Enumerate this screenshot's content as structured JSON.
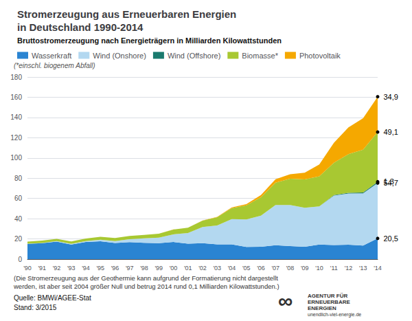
{
  "chart_data": {
    "type": "area",
    "stacked": true,
    "title": "Stromerzeugung aus Erneuerbaren Energien\nin Deutschland 1990-2014",
    "subtitle": "Bruttostromerzeugung nach Energieträgern in Milliarden Kilowattstunden",
    "categories": [
      "'90",
      "'91",
      "'92",
      "'93",
      "'94",
      "'95",
      "'96",
      "'97",
      "'98",
      "'99",
      "'00",
      "'01",
      "'02",
      "'03",
      "'04",
      "'05",
      "'06",
      "'07",
      "'08",
      "'09",
      "'10",
      "'11",
      "'12",
      "'13",
      "'14"
    ],
    "series": [
      {
        "name": "Wasserkraft",
        "color": "#2a84d2",
        "values": [
          15.1,
          15.8,
          17.4,
          14.4,
          16.9,
          17.7,
          15.9,
          16.8,
          16.2,
          15.8,
          16.9,
          15.3,
          15.8,
          14.6,
          14.6,
          12.1,
          12.2,
          13.8,
          12.9,
          12.2,
          14.4,
          13.9,
          14.2,
          13.5,
          20.5
        ]
      },
      {
        "name": "Wind (Onshore)",
        "color": "#b3d8f0",
        "values": [
          0.1,
          0.2,
          0.4,
          0.7,
          1.0,
          1.5,
          2.0,
          2.9,
          4.3,
          5.5,
          7.6,
          10.5,
          15.9,
          18.7,
          25.0,
          27.2,
          30.7,
          39.7,
          40.6,
          38.6,
          37.8,
          48.9,
          50.7,
          51.5,
          54.7
        ]
      },
      {
        "name": "Wind (Offshore)",
        "color": "#1a7a6e",
        "values": [
          0.0,
          0.0,
          0.0,
          0.0,
          0.0,
          0.0,
          0.0,
          0.0,
          0.0,
          0.0,
          0.0,
          0.0,
          0.0,
          0.0,
          0.0,
          0.0,
          0.0,
          0.0,
          0.0,
          0.0,
          0.0,
          0.5,
          0.6,
          0.9,
          1.3
        ]
      },
      {
        "name": "Biomasse*",
        "color": "#a8c832",
        "values": [
          2.2,
          2.3,
          2.3,
          2.4,
          2.5,
          2.9,
          3.0,
          3.3,
          3.5,
          3.8,
          4.7,
          5.2,
          6.3,
          8.2,
          10.9,
          13.8,
          18.3,
          22.0,
          26.0,
          28.0,
          29.7,
          32.0,
          38.3,
          42.3,
          49.1
        ]
      },
      {
        "name": "Photovoltaik",
        "color": "#f5a800",
        "values": [
          0.0,
          0.0,
          0.0,
          0.0,
          0.0,
          0.0,
          0.0,
          0.0,
          0.0,
          0.0,
          0.1,
          0.1,
          0.2,
          0.3,
          0.6,
          1.3,
          2.2,
          3.5,
          4.4,
          6.6,
          11.7,
          19.6,
          26.4,
          31.0,
          34.9
        ]
      }
    ],
    "ylim": [
      0,
      180
    ],
    "yticks": [
      0,
      20,
      40,
      60,
      80,
      100,
      120,
      140,
      160,
      180
    ],
    "grid": true,
    "legend": "upper left",
    "annotations": [
      {
        "series": "Photovoltaik",
        "x": "'14",
        "text": "34,9"
      },
      {
        "series": "Biomasse*",
        "x": "'14",
        "text": "49,1"
      },
      {
        "series": "Wind (Offshore)",
        "x": "'14",
        "text": "1,3"
      },
      {
        "series": "Wind (Onshore)",
        "x": "'14",
        "text": "54,7"
      },
      {
        "series": "Wasserkraft",
        "x": "'14",
        "text": "20,5"
      }
    ],
    "legend_note": "(*einschl. biogenem Abfall)",
    "note": "(Die Stromerzeugung aus der Geothermie kann aufgrund der Formatierung nicht dargestellt\nwerden, ist aber seit 2004 größer Null und betrug 2014 rund 0,1 Milliarden Kilowattstunden.)",
    "source": [
      "Quelle: BMWi/AGEE-Stat",
      "Stand: 3/2015"
    ],
    "logo": [
      "∞",
      "AGENTUR FÜR",
      "ERNEUERBARE",
      "ENERGIEN",
      "unendlich-viel-energie.de"
    ]
  }
}
